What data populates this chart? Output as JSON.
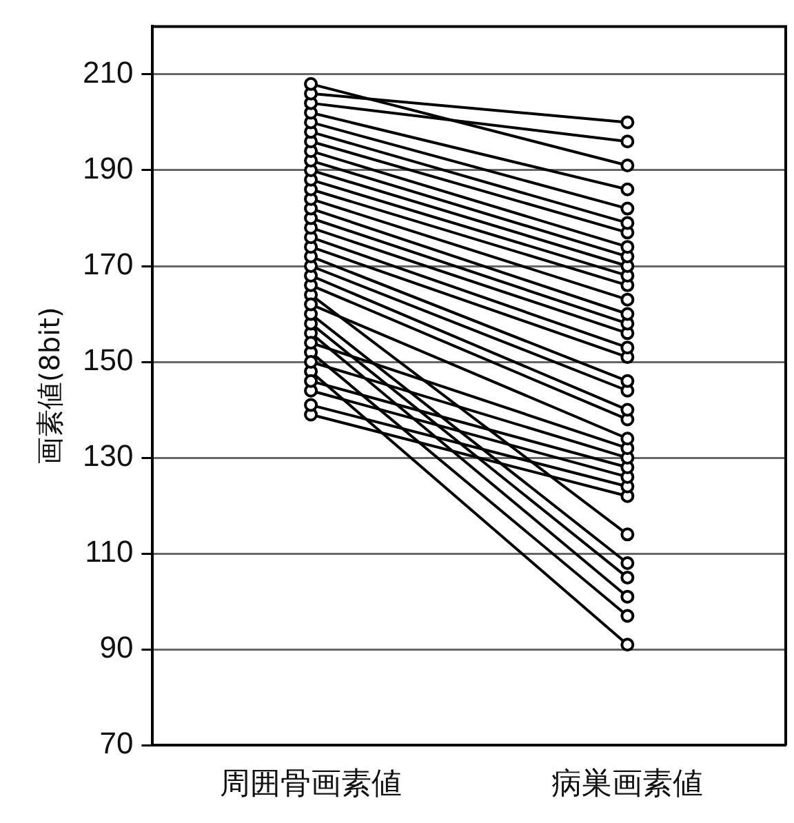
{
  "chart_data": {
    "type": "line",
    "ylabel": "画素値(8bit)",
    "categories": [
      "周囲骨画素値",
      "病巣画素値"
    ],
    "ylim": [
      70,
      220
    ],
    "yticks": [
      70,
      90,
      110,
      130,
      150,
      170,
      190,
      210
    ],
    "grid": "y",
    "legend": false,
    "marker": "circle",
    "line_style": "solid",
    "series": [
      {
        "color": "#000000",
        "values": [
          208,
          191
        ]
      },
      {
        "color": "#000000",
        "values": [
          206,
          200
        ]
      },
      {
        "color": "#000000",
        "values": [
          204,
          196
        ]
      },
      {
        "color": "#000000",
        "values": [
          202,
          186
        ]
      },
      {
        "color": "#000000",
        "values": [
          200,
          182
        ]
      },
      {
        "color": "#000000",
        "values": [
          198,
          179
        ]
      },
      {
        "color": "#000000",
        "values": [
          196,
          177
        ]
      },
      {
        "color": "#000000",
        "values": [
          194,
          174
        ]
      },
      {
        "color": "#000000",
        "values": [
          192,
          172
        ]
      },
      {
        "color": "#000000",
        "values": [
          190,
          170
        ]
      },
      {
        "color": "#000000",
        "values": [
          188,
          168
        ]
      },
      {
        "color": "#000000",
        "values": [
          186,
          166
        ]
      },
      {
        "color": "#000000",
        "values": [
          184,
          163
        ]
      },
      {
        "color": "#000000",
        "values": [
          182,
          160
        ]
      },
      {
        "color": "#000000",
        "values": [
          180,
          158
        ]
      },
      {
        "color": "#000000",
        "values": [
          178,
          156
        ]
      },
      {
        "color": "#000000",
        "values": [
          176,
          153
        ]
      },
      {
        "color": "#000000",
        "values": [
          174,
          151
        ]
      },
      {
        "color": "#000000",
        "values": [
          172,
          146
        ]
      },
      {
        "color": "#000000",
        "values": [
          170,
          144
        ]
      },
      {
        "color": "#000000",
        "values": [
          168,
          140
        ]
      },
      {
        "color": "#000000",
        "values": [
          166,
          138
        ]
      },
      {
        "color": "#000000",
        "values": [
          162,
          134
        ]
      },
      {
        "color": "#000000",
        "values": [
          154,
          132
        ]
      },
      {
        "color": "#000000",
        "values": [
          150,
          130
        ]
      },
      {
        "color": "#000000",
        "values": [
          146,
          128
        ]
      },
      {
        "color": "#000000",
        "values": [
          144,
          126
        ]
      },
      {
        "color": "#000000",
        "values": [
          141,
          124
        ]
      },
      {
        "color": "#000000",
        "values": [
          139,
          122
        ]
      },
      {
        "color": "#000000",
        "values": [
          164,
          114
        ]
      },
      {
        "color": "#000000",
        "values": [
          160,
          108
        ]
      },
      {
        "color": "#000000",
        "values": [
          158,
          105
        ]
      },
      {
        "color": "#000000",
        "values": [
          156,
          101
        ]
      },
      {
        "color": "#000000",
        "values": [
          152,
          97
        ]
      },
      {
        "color": "#000000",
        "values": [
          148,
          91
        ]
      }
    ]
  }
}
